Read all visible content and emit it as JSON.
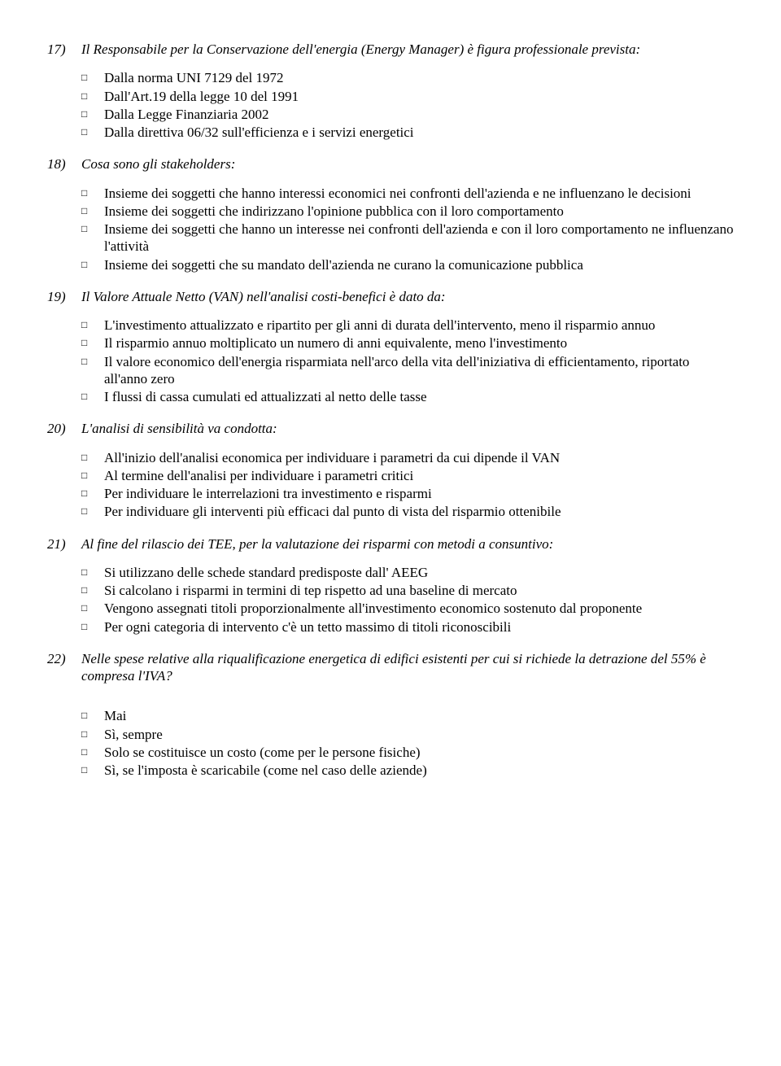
{
  "questions": [
    {
      "num": "17)",
      "text": "Il Responsabile per la Conservazione dell'energia (Energy Manager) è figura professionale prevista:",
      "options": [
        "Dalla norma UNI 7129 del 1972",
        "Dall'Art.19 della legge 10 del 1991",
        "Dalla Legge Finanziaria 2002",
        "Dalla direttiva 06/32 sull'efficienza e i servizi energetici"
      ]
    },
    {
      "num": "18)",
      "text": "Cosa sono gli stakeholders:",
      "options": [
        "Insieme dei soggetti che hanno interessi economici nei confronti dell'azienda e ne influenzano le decisioni",
        "Insieme dei soggetti che indirizzano l'opinione pubblica con il loro comportamento",
        "Insieme dei soggetti che hanno un interesse nei confronti dell'azienda e con il loro comportamento ne influenzano l'attività",
        "Insieme dei soggetti che su mandato dell'azienda ne curano la comunicazione pubblica"
      ]
    },
    {
      "num": "19)",
      "text": "Il Valore Attuale Netto (VAN) nell'analisi costi-benefici è dato da:",
      "options": [
        "L'investimento attualizzato e ripartito per gli anni di durata dell'intervento, meno il risparmio annuo",
        "Il risparmio annuo moltiplicato un numero di anni equivalente, meno l'investimento",
        "Il valore economico dell'energia risparmiata nell'arco della vita dell'iniziativa di efficientamento, riportato all'anno zero",
        "I flussi di cassa cumulati ed attualizzati al netto delle tasse"
      ]
    },
    {
      "num": "20)",
      "text": "L'analisi di sensibilità va condotta:",
      "options": [
        "All'inizio dell'analisi economica per individuare i parametri da cui dipende il VAN",
        "Al termine dell'analisi per individuare i parametri critici",
        "Per individuare le interrelazioni tra investimento e risparmi",
        "Per individuare gli interventi più efficaci dal punto di vista del risparmio ottenibile"
      ]
    },
    {
      "num": "21)",
      "text": "Al fine del rilascio dei TEE, per la valutazione dei risparmi con metodi a consuntivo:",
      "justify": true,
      "options": [
        "Si utilizzano delle schede standard predisposte dall' AEEG",
        "Si calcolano i risparmi in termini di tep rispetto ad una baseline di mercato",
        "Vengono assegnati titoli proporzionalmente all'investimento economico sostenuto dal proponente",
        "Per ogni categoria di intervento c'è un tetto massimo di titoli riconoscibili"
      ]
    },
    {
      "num": "22)",
      "text": "Nelle spese relative alla riqualificazione energetica di edifici esistenti per cui si richiede la detrazione del 55% è compresa l'IVA?",
      "extraGap": true,
      "options": [
        "Mai",
        "Sì, sempre",
        "Solo se costituisce un costo (come per le persone fisiche)",
        "Sì, se l'imposta è scaricabile (come nel caso delle aziende)"
      ]
    }
  ],
  "checkbox_glyph": "□"
}
